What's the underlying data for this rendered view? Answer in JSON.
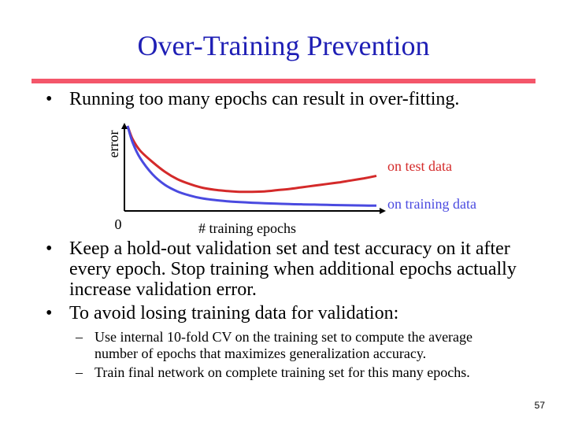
{
  "title": "Over-Training Prevention",
  "colors": {
    "title": "#1f1fb5",
    "rule": "#f4566a",
    "test_curve": "#d42a2a",
    "train_curve": "#4a4ae0",
    "axis": "#000000"
  },
  "bullets": [
    {
      "marker": "•",
      "text": "Running too many epochs can result in over-fitting."
    },
    {
      "marker": "•",
      "lines": [
        "Keep a hold-out validation set and test accuracy on it after",
        "every epoch. Stop training when additional epochs actually",
        "increase validation error."
      ]
    },
    {
      "marker": "•",
      "text": "To avoid losing training data for validation:"
    }
  ],
  "sub_bullets": [
    {
      "marker": "–",
      "lines": [
        "Use internal 10-fold CV on the training set to compute the average",
        "number of epochs that maximizes generalization accuracy."
      ]
    },
    {
      "marker": "–",
      "lines": [
        "Train final network on complete training set for this many epochs."
      ]
    }
  ],
  "chart_data": {
    "type": "line",
    "title": "",
    "xlabel": "# training epochs",
    "ylabel": "error",
    "origin_label": "0",
    "xlim": [
      0,
      100
    ],
    "ylim": [
      0,
      100
    ],
    "grid": false,
    "series": [
      {
        "name": "on test data",
        "x": [
          0,
          2,
          5,
          10,
          15,
          20,
          25,
          30,
          35,
          40,
          45,
          50,
          55,
          60,
          65,
          70,
          75,
          80,
          85,
          90,
          95,
          100
        ],
        "values": [
          100,
          84,
          70,
          56,
          44,
          35,
          29,
          24.5,
          22,
          20.5,
          19.5,
          19.5,
          20,
          21.5,
          23,
          25,
          27,
          29,
          31,
          33.5,
          36,
          39
        ]
      },
      {
        "name": "on training data",
        "x": [
          0,
          2,
          5,
          10,
          15,
          20,
          25,
          30,
          35,
          40,
          45,
          50,
          55,
          60,
          65,
          70,
          75,
          80,
          85,
          90,
          95,
          100
        ],
        "values": [
          100,
          80,
          61,
          41,
          28,
          20,
          15,
          11.5,
          9.5,
          8,
          7,
          6.2,
          5.6,
          5,
          4.6,
          4.2,
          3.9,
          3.6,
          3.3,
          3,
          2.8,
          2.6
        ]
      }
    ]
  },
  "page_number": "57"
}
